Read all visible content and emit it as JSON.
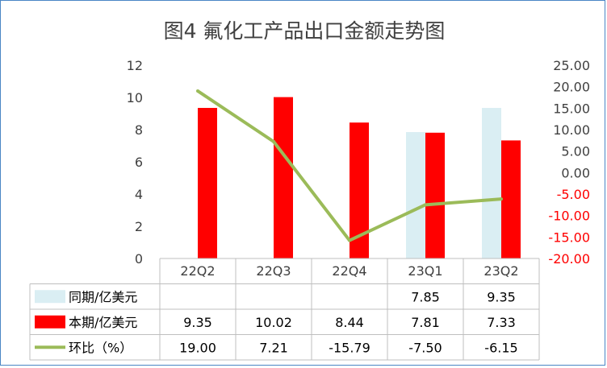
{
  "chart_data": {
    "type": "bar",
    "title": "图4  氟化工产品出口金额走势图",
    "categories": [
      "22Q2",
      "22Q3",
      "22Q4",
      "23Q1",
      "23Q2"
    ],
    "series": [
      {
        "name": "同期/亿美元",
        "type": "bar",
        "axis": "left",
        "color": "#daeef3",
        "values": [
          null,
          null,
          null,
          7.85,
          9.35
        ],
        "labels": [
          "",
          "",
          "",
          "7.85",
          "9.35"
        ]
      },
      {
        "name": "本期/亿美元",
        "type": "bar",
        "axis": "left",
        "color": "#ff0000",
        "values": [
          9.35,
          10.02,
          8.44,
          7.81,
          7.33
        ],
        "labels": [
          "9.35",
          "10.02",
          "8.44",
          "7.81",
          "7.33"
        ]
      },
      {
        "name": "环比（%）",
        "type": "line",
        "axis": "right",
        "color": "#9bbb59",
        "values": [
          19.0,
          7.21,
          -15.79,
          -7.5,
          -6.15
        ],
        "labels": [
          "19.00",
          "7.21",
          "-15.79",
          "-7.50",
          "-6.15"
        ]
      }
    ],
    "y_left": {
      "min": 0,
      "max": 12,
      "ticks": [
        "0",
        "2",
        "4",
        "6",
        "8",
        "10",
        "12"
      ]
    },
    "y_right": {
      "min": -20,
      "max": 25,
      "ticks": [
        "-20.00",
        "-15.00",
        "-10.00",
        "-5.00",
        "0.00",
        "5.00",
        "10.00",
        "15.00",
        "20.00",
        "25.00"
      ],
      "negative_color": "#ff0000",
      "positive_color": "#404040"
    },
    "grid": false,
    "legend": "data-table"
  }
}
